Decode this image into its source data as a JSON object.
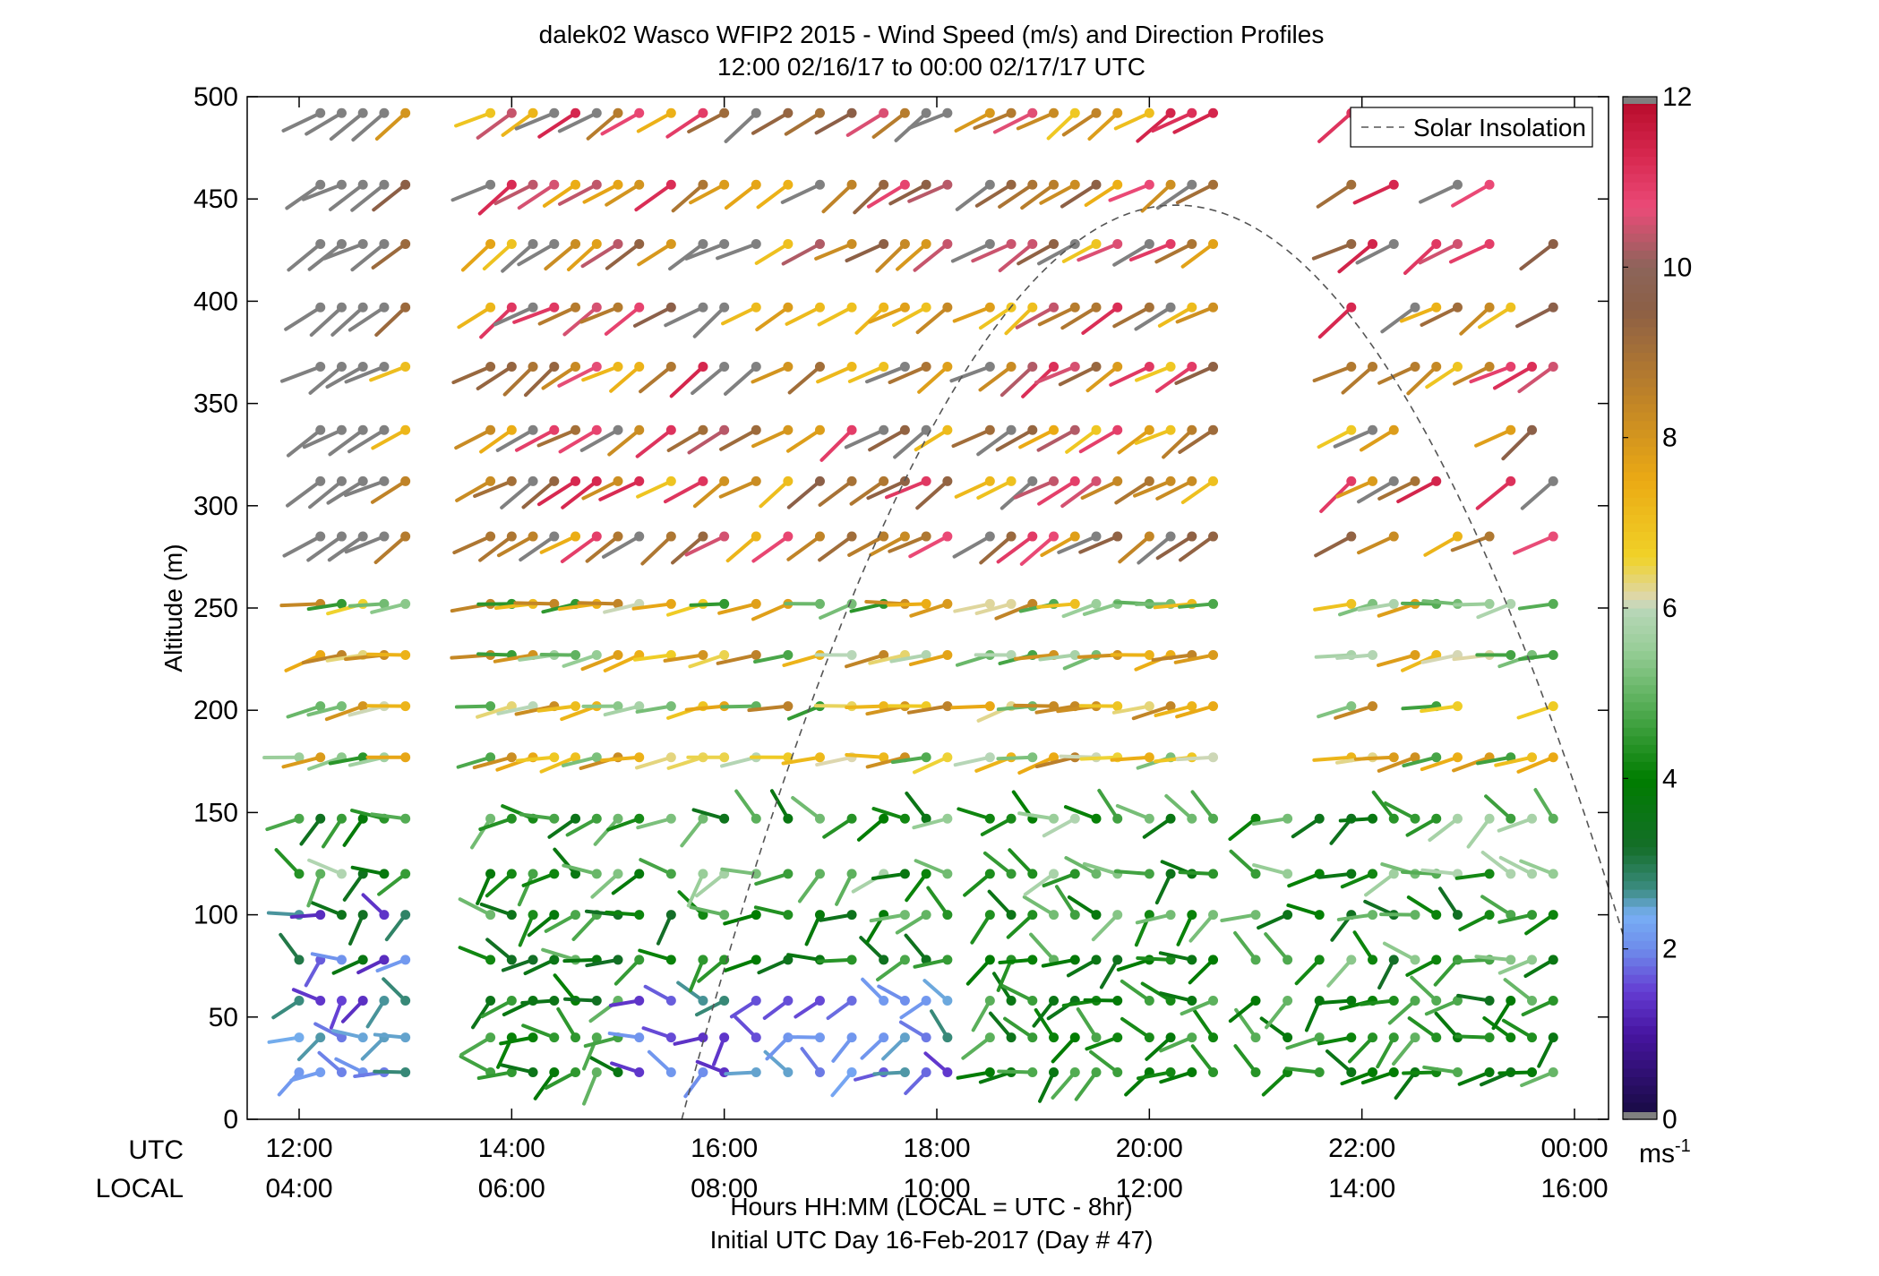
{
  "chart_data": {
    "type": "wind-barb-profile",
    "title": "dalek02 Wasco WFIP2 2015 - Wind Speed (m/s) and Direction Profiles",
    "subtitle": "12:00 02/16/17 to 00:00 02/17/17  UTC",
    "ylabel": "Altitude (m)",
    "xlabel": "Hours HH:MM  (LOCAL = UTC - 8hr)",
    "xlabel2": "Initial UTC Day 16-Feb-2017 (Day # 47)",
    "utc_row_label": "UTC",
    "local_row_label": "LOCAL",
    "x_ticks_utc": [
      "12:00",
      "14:00",
      "16:00",
      "18:00",
      "20:00",
      "22:00",
      "00:00"
    ],
    "x_ticks_local": [
      "04:00",
      "06:00",
      "08:00",
      "10:00",
      "12:00",
      "14:00",
      "16:00"
    ],
    "x_tick_hours": [
      12,
      14,
      16,
      18,
      20,
      22,
      24
    ],
    "xlim_hours": [
      11.5,
      24.5
    ],
    "ylim": [
      0,
      500
    ],
    "y_ticks": [
      0,
      50,
      100,
      150,
      200,
      250,
      300,
      350,
      400,
      450,
      500
    ],
    "legend": {
      "label": "Solar Insolation",
      "placement": "top-right"
    },
    "colorbar": {
      "unit": "ms-1",
      "unit_base": "ms",
      "unit_exp": "-1",
      "range": [
        0,
        12
      ],
      "ticks": [
        "0",
        "2",
        "4",
        "6",
        "8",
        "10",
        "12"
      ]
    },
    "solar_curve": {
      "start_hour": 15.6,
      "peak_hour": 20.25,
      "peak_altitude": 447,
      "end_hour": 24.5,
      "end_altitude": 83
    },
    "altitudes": [
      23,
      40,
      58,
      78,
      100,
      120,
      147,
      177,
      202,
      227,
      252,
      285,
      312,
      337,
      368,
      397,
      428,
      457,
      492
    ],
    "time_hours": [
      12.0,
      12.2,
      12.4,
      12.6,
      12.8,
      13.0,
      13.8,
      14.0,
      14.2,
      14.4,
      14.6,
      14.8,
      15.0,
      15.2,
      15.5,
      15.8,
      16.0,
      16.3,
      16.6,
      16.9,
      17.2,
      17.5,
      17.7,
      17.9,
      18.1,
      18.5,
      18.7,
      18.9,
      19.1,
      19.3,
      19.5,
      19.7,
      20.0,
      20.2,
      20.4,
      20.6,
      21.0,
      21.3,
      21.6,
      21.9,
      22.1,
      22.3,
      22.5,
      22.7,
      22.9,
      23.2,
      23.4,
      23.6,
      23.8
    ]
  }
}
